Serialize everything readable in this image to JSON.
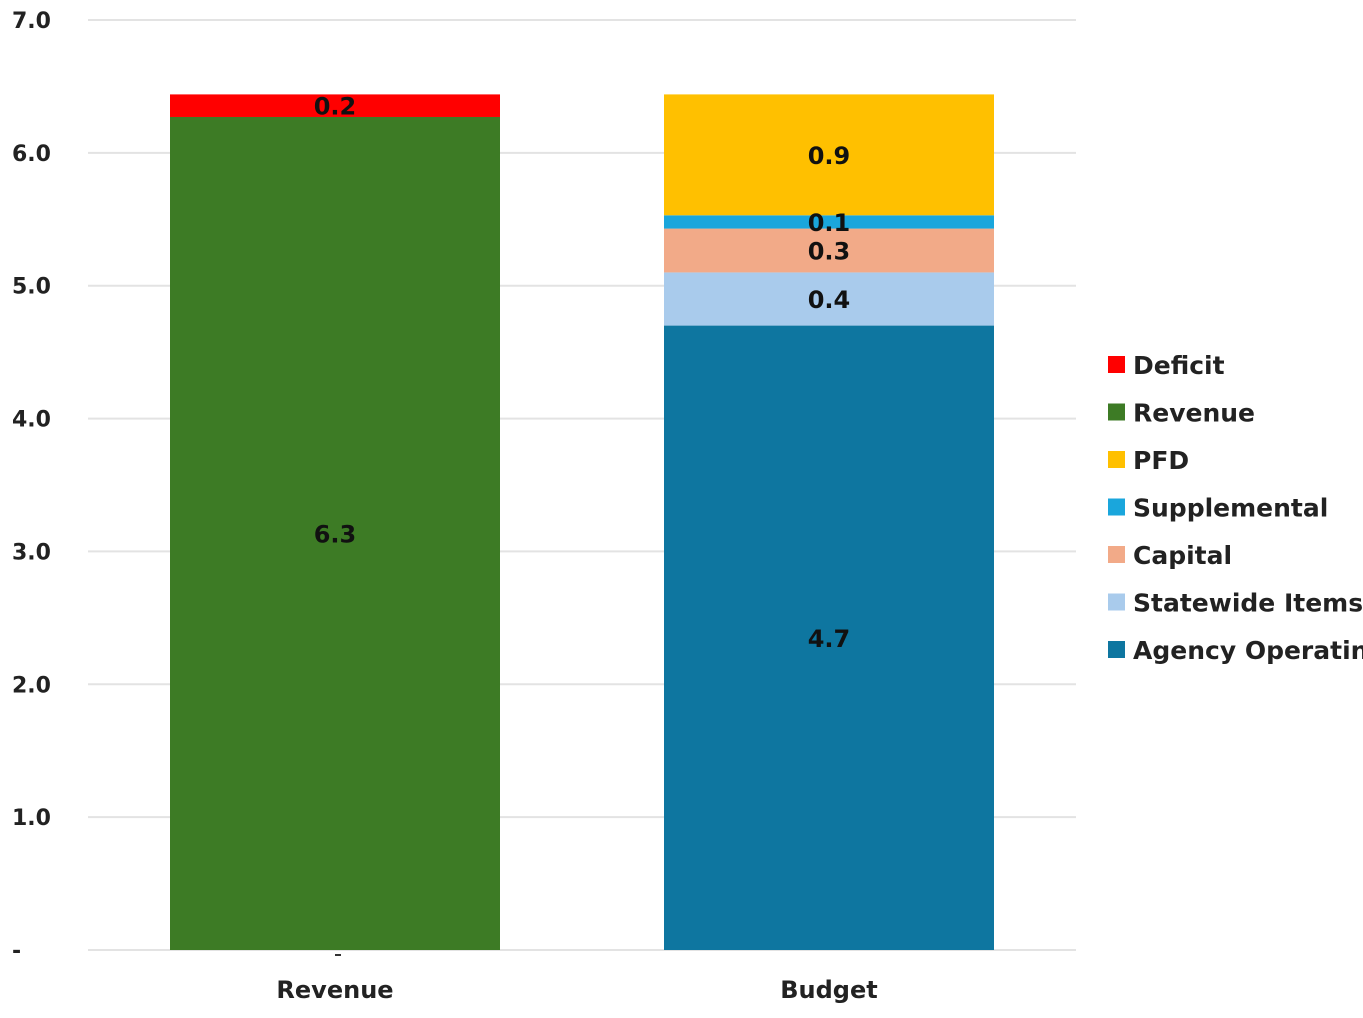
{
  "chart_data": {
    "type": "bar",
    "stacked": true,
    "categories": [
      "Revenue",
      "Budget"
    ],
    "series": [
      {
        "name": "Agency Operating",
        "color": "#0e76a0",
        "values": [
          0,
          4.7
        ]
      },
      {
        "name": "Statewide Items",
        "color": "#a9cbec",
        "values": [
          0,
          0.4
        ]
      },
      {
        "name": "Capital",
        "color": "#f2aa88",
        "values": [
          0,
          0.33
        ]
      },
      {
        "name": "Supplemental",
        "color": "#1aa6dc",
        "values": [
          0,
          0.1
        ]
      },
      {
        "name": "PFD",
        "color": "#ffc000",
        "values": [
          0,
          0.91
        ]
      },
      {
        "name": "Revenue",
        "color": "#3d7b25",
        "values": [
          6.27,
          0
        ]
      },
      {
        "name": "Deficit",
        "color": "#ff0000",
        "values": [
          0.17,
          0
        ]
      }
    ],
    "data_labels": [
      {
        "category": "Revenue",
        "series": "Revenue",
        "text": "6.3"
      },
      {
        "category": "Revenue",
        "series": "Deficit",
        "text": "0.2"
      },
      {
        "category": "Budget",
        "series": "Agency Operating",
        "text": "4.7"
      },
      {
        "category": "Budget",
        "series": "Statewide Items",
        "text": "0.4"
      },
      {
        "category": "Budget",
        "series": "Capital",
        "text": "0.3"
      },
      {
        "category": "Budget",
        "series": "Supplemental",
        "text": "0.1"
      },
      {
        "category": "Budget",
        "series": "PFD",
        "text": "0.9"
      }
    ],
    "legend_order": [
      "Deficit",
      "Revenue",
      "PFD",
      "Supplemental",
      "Capital",
      "Statewide Items",
      "Agency Operating"
    ],
    "legend_position": "right",
    "yticks": [
      0,
      1,
      2,
      3,
      4,
      5,
      6,
      7
    ],
    "ytick_labels": [
      "-",
      "1.0",
      "2.0",
      "3.0",
      "4.0",
      "5.0",
      "6.0",
      "7.0"
    ],
    "ylim": [
      0,
      7
    ],
    "grid": true,
    "title": "",
    "xlabel": "",
    "ylabel": ""
  }
}
